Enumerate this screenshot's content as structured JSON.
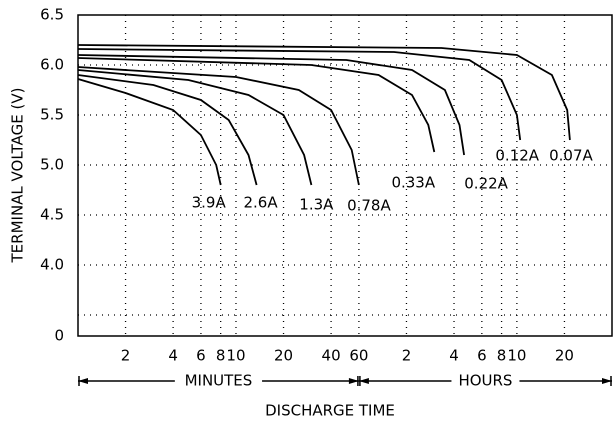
{
  "chart_data": {
    "type": "line",
    "color": "#000000",
    "xlabel": "DISCHARGE TIME",
    "ylabel": "TERMINAL VOLTAGE (V)",
    "xscale": "log",
    "grid": true,
    "xlim": [
      1,
      2400
    ],
    "ylim": [
      3.29,
      6.5
    ],
    "xticks": [
      2,
      4,
      6,
      8,
      10,
      20,
      40,
      60,
      {
        "value": 120,
        "label": "2"
      },
      {
        "value": 240,
        "label": "4"
      },
      {
        "value": 360,
        "label": "6"
      },
      {
        "value": 480,
        "label": "8"
      },
      {
        "value": 600,
        "label": "10"
      },
      {
        "value": 1200,
        "label": "20"
      }
    ],
    "yticks": [
      6.5,
      {
        "value": 6.0,
        "label": "6.0"
      },
      5.5,
      {
        "value": 5.0,
        "label": "5.0"
      },
      4.5,
      {
        "value": 4.0,
        "label": "4.0"
      }
    ],
    "ygrid": [
      3.5,
      4.0,
      4.5,
      5.0,
      5.5,
      6.0
    ],
    "y_break_label": "0",
    "x_groups": [
      {
        "label": "MINUTES",
        "range": [
          1,
          60
        ]
      },
      {
        "label": "HOURS",
        "range": [
          60,
          2400
        ]
      }
    ],
    "series": [
      {
        "name": "3.9A",
        "x": [
          1,
          2,
          4,
          6,
          7.5,
          8
        ],
        "values": [
          5.86,
          5.72,
          5.55,
          5.3,
          5.0,
          4.8
        ]
      },
      {
        "name": "2.6A",
        "x": [
          1,
          3,
          6,
          9,
          12,
          13.5
        ],
        "values": [
          5.9,
          5.8,
          5.65,
          5.45,
          5.1,
          4.8
        ]
      },
      {
        "name": "1.3A",
        "x": [
          1,
          5,
          12,
          20,
          27,
          30
        ],
        "values": [
          5.95,
          5.85,
          5.7,
          5.5,
          5.1,
          4.8
        ]
      },
      {
        "name": "0.78A",
        "x": [
          1,
          10,
          25,
          40,
          54,
          60
        ],
        "values": [
          5.98,
          5.88,
          5.75,
          5.55,
          5.15,
          4.8
        ]
      },
      {
        "name": "0.33A",
        "x": [
          1,
          30,
          80,
          130,
          165,
          180
        ],
        "values": [
          6.07,
          6.0,
          5.9,
          5.7,
          5.4,
          5.13
        ]
      },
      {
        "name": "0.22A",
        "x": [
          1,
          50,
          130,
          210,
          260,
          278
        ],
        "values": [
          6.1,
          6.05,
          5.95,
          5.75,
          5.4,
          5.1
        ]
      },
      {
        "name": "0.12A",
        "x": [
          1,
          100,
          300,
          480,
          600,
          630
        ],
        "values": [
          6.16,
          6.13,
          6.05,
          5.85,
          5.5,
          5.25
        ]
      },
      {
        "name": "0.07A",
        "x": [
          1,
          200,
          600,
          1000,
          1250,
          1300
        ],
        "values": [
          6.2,
          6.17,
          6.1,
          5.9,
          5.55,
          5.25
        ]
      }
    ]
  }
}
